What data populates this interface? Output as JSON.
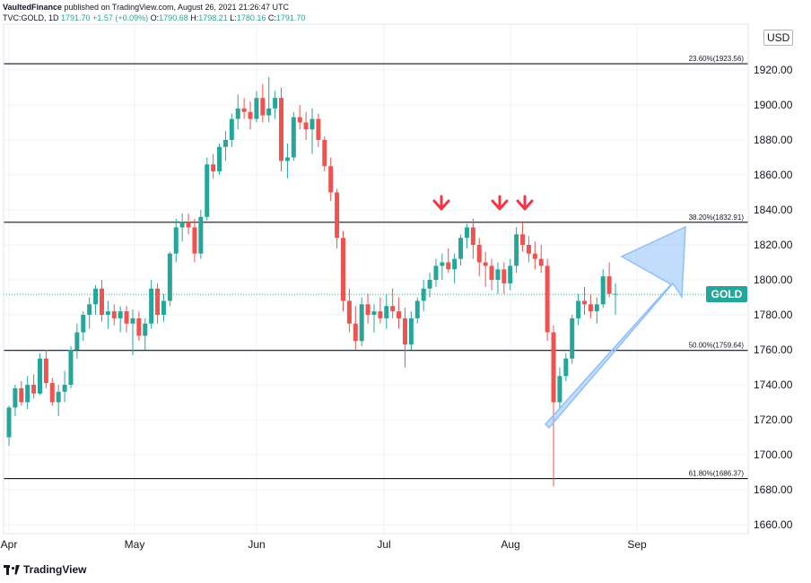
{
  "header": {
    "publisher": "VaultedFinance",
    "published_text": " published on TradingView.com, August 26, 2021 21:26:47 UTC",
    "symbol_line": "TVC:GOLD, 1D",
    "ohlc": {
      "last": "1791.70",
      "change": "+1.57 (+0.09%)",
      "open_label": "O:",
      "open": "1790.68",
      "high_label": "H:",
      "high": "1798.21",
      "low_label": "L:",
      "low": "1780.16",
      "close_label": "C:",
      "close": "1791.70"
    }
  },
  "currency_label": "USD",
  "price_tag": {
    "label": "GOLD",
    "color": "#26a69a"
  },
  "footer": {
    "brand": "TradingView"
  },
  "colors": {
    "up": "#26a69a",
    "down": "#ef5350",
    "arrow_marker": "#f23645",
    "projection_arrow": "#90bff9"
  },
  "chart_data": {
    "type": "candlestick",
    "y_axis": {
      "min": 1650,
      "max": 1950,
      "ticks": [
        1660,
        1680,
        1700,
        1720,
        1740,
        1760,
        1780,
        1800,
        1820,
        1840,
        1860,
        1880,
        1900,
        1920
      ]
    },
    "x_axis": {
      "labels": [
        "Apr",
        "May",
        "Jun",
        "Jul",
        "Aug",
        "Sep"
      ]
    },
    "horizontal_lines": [
      {
        "label": "23.60%(1923.56)",
        "price": 1923.56
      },
      {
        "label": "38.20%(1832.91)",
        "price": 1832.91
      },
      {
        "label": "50.00%(1759.64)",
        "price": 1759.64
      },
      {
        "label": "61.80%(1686.37)",
        "price": 1686.37
      }
    ],
    "last_price": 1791.7,
    "candles": [
      [
        1710,
        1728,
        1705,
        1727
      ],
      [
        1727,
        1740,
        1722,
        1738
      ],
      [
        1738,
        1742,
        1728,
        1730
      ],
      [
        1730,
        1745,
        1726,
        1740
      ],
      [
        1740,
        1746,
        1732,
        1735
      ],
      [
        1735,
        1758,
        1734,
        1755
      ],
      [
        1755,
        1760,
        1738,
        1741
      ],
      [
        1741,
        1744,
        1728,
        1730
      ],
      [
        1730,
        1740,
        1722,
        1736
      ],
      [
        1736,
        1748,
        1730,
        1740
      ],
      [
        1740,
        1762,
        1738,
        1760
      ],
      [
        1760,
        1775,
        1755,
        1770
      ],
      [
        1770,
        1782,
        1765,
        1780
      ],
      [
        1780,
        1790,
        1772,
        1786
      ],
      [
        1786,
        1797,
        1780,
        1795
      ],
      [
        1795,
        1800,
        1776,
        1780
      ],
      [
        1780,
        1788,
        1772,
        1782
      ],
      [
        1782,
        1786,
        1774,
        1778
      ],
      [
        1778,
        1785,
        1770,
        1782
      ],
      [
        1782,
        1785,
        1770,
        1775
      ],
      [
        1775,
        1783,
        1757,
        1778
      ],
      [
        1778,
        1782,
        1765,
        1768
      ],
      [
        1768,
        1778,
        1760,
        1775
      ],
      [
        1775,
        1800,
        1772,
        1795
      ],
      [
        1795,
        1798,
        1775,
        1780
      ],
      [
        1780,
        1792,
        1776,
        1788
      ],
      [
        1788,
        1816,
        1785,
        1815
      ],
      [
        1815,
        1835,
        1810,
        1830
      ],
      [
        1830,
        1838,
        1822,
        1833
      ],
      [
        1833,
        1838,
        1826,
        1830
      ],
      [
        1830,
        1835,
        1810,
        1815
      ],
      [
        1815,
        1840,
        1812,
        1836
      ],
      [
        1836,
        1870,
        1834,
        1866
      ],
      [
        1866,
        1872,
        1858,
        1862
      ],
      [
        1862,
        1878,
        1860,
        1876
      ],
      [
        1876,
        1885,
        1868,
        1880
      ],
      [
        1880,
        1895,
        1876,
        1892
      ],
      [
        1892,
        1906,
        1886,
        1898
      ],
      [
        1898,
        1904,
        1892,
        1896
      ],
      [
        1896,
        1902,
        1886,
        1892
      ],
      [
        1892,
        1908,
        1890,
        1904
      ],
      [
        1904,
        1912,
        1890,
        1894
      ],
      [
        1894,
        1916,
        1890,
        1898
      ],
      [
        1898,
        1908,
        1892,
        1904
      ],
      [
        1904,
        1910,
        1862,
        1868
      ],
      [
        1868,
        1878,
        1858,
        1870
      ],
      [
        1870,
        1896,
        1868,
        1893
      ],
      [
        1893,
        1900,
        1886,
        1890
      ],
      [
        1890,
        1896,
        1880,
        1886
      ],
      [
        1886,
        1898,
        1872,
        1892
      ],
      [
        1892,
        1895,
        1876,
        1880
      ],
      [
        1880,
        1882,
        1862,
        1865
      ],
      [
        1865,
        1870,
        1845,
        1850
      ],
      [
        1850,
        1852,
        1818,
        1824
      ],
      [
        1824,
        1828,
        1782,
        1788
      ],
      [
        1788,
        1795,
        1770,
        1775
      ],
      [
        1775,
        1785,
        1760,
        1765
      ],
      [
        1765,
        1790,
        1762,
        1786
      ],
      [
        1786,
        1792,
        1775,
        1780
      ],
      [
        1780,
        1786,
        1770,
        1782
      ],
      [
        1782,
        1790,
        1775,
        1778
      ],
      [
        1778,
        1792,
        1772,
        1785
      ],
      [
        1785,
        1795,
        1778,
        1782
      ],
      [
        1782,
        1790,
        1772,
        1778
      ],
      [
        1778,
        1784,
        1750,
        1763
      ],
      [
        1763,
        1782,
        1760,
        1778
      ],
      [
        1778,
        1790,
        1775,
        1788
      ],
      [
        1788,
        1800,
        1782,
        1795
      ],
      [
        1795,
        1804,
        1790,
        1800
      ],
      [
        1800,
        1812,
        1796,
        1808
      ],
      [
        1808,
        1815,
        1800,
        1810
      ],
      [
        1810,
        1818,
        1804,
        1806
      ],
      [
        1806,
        1815,
        1798,
        1812
      ],
      [
        1812,
        1826,
        1808,
        1824
      ],
      [
        1824,
        1832,
        1818,
        1830
      ],
      [
        1830,
        1835,
        1812,
        1820
      ],
      [
        1820,
        1824,
        1802,
        1810
      ],
      [
        1810,
        1816,
        1796,
        1808
      ],
      [
        1808,
        1812,
        1794,
        1800
      ],
      [
        1800,
        1810,
        1792,
        1806
      ],
      [
        1806,
        1810,
        1792,
        1798
      ],
      [
        1798,
        1812,
        1794,
        1808
      ],
      [
        1808,
        1830,
        1804,
        1826
      ],
      [
        1826,
        1833,
        1816,
        1820
      ],
      [
        1820,
        1825,
        1810,
        1815
      ],
      [
        1815,
        1822,
        1806,
        1812
      ],
      [
        1812,
        1820,
        1804,
        1808
      ],
      [
        1808,
        1812,
        1765,
        1770
      ],
      [
        1770,
        1774,
        1682,
        1730
      ],
      [
        1730,
        1750,
        1726,
        1745
      ],
      [
        1745,
        1758,
        1742,
        1755
      ],
      [
        1755,
        1780,
        1752,
        1778
      ],
      [
        1778,
        1792,
        1774,
        1788
      ],
      [
        1788,
        1796,
        1780,
        1786
      ],
      [
        1786,
        1792,
        1778,
        1782
      ],
      [
        1782,
        1790,
        1775,
        1786
      ],
      [
        1786,
        1806,
        1784,
        1802
      ],
      [
        1802,
        1810,
        1790,
        1792
      ],
      [
        1792,
        1798,
        1780,
        1792
      ]
    ]
  }
}
